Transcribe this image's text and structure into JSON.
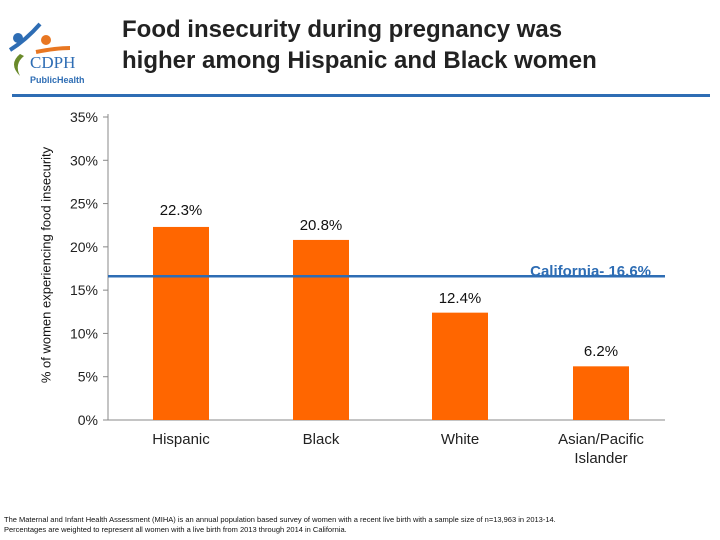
{
  "header": {
    "title_line1": "Food insecurity during pregnancy was",
    "title_line2": "higher among Hispanic and Black women",
    "logo_text": "CDPH",
    "logo_subtext": "PublicHealth"
  },
  "footnote": {
    "line1": "The Maternal and Infant Health Assessment (MIHA) is an annual population based survey of women with a recent live birth with a sample size of n=13,963 in 2013-14.",
    "line2": "Percentages are weighted to represent all women with a live birth from 2013 through 2014 in California."
  },
  "chart_data": {
    "type": "bar",
    "title": "Food insecurity during pregnancy was higher among Hispanic and Black women",
    "ylabel": "% of women experiencing food insecurity",
    "categories": [
      "Hispanic",
      "Black",
      "White",
      "Asian/Pacific Islander"
    ],
    "values": [
      22.3,
      20.8,
      12.4,
      6.2
    ],
    "data_labels": [
      "22.3%",
      "20.8%",
      "12.4%",
      "6.2%"
    ],
    "ylim": [
      0,
      35
    ],
    "yticks": [
      "0%",
      "5%",
      "10%",
      "15%",
      "20%",
      "25%",
      "30%",
      "35%"
    ],
    "reference_line": {
      "value": 16.6,
      "label": "California- 16.6%",
      "color": "#2e6db4"
    },
    "bar_color": "#ff6600",
    "grid": false
  }
}
